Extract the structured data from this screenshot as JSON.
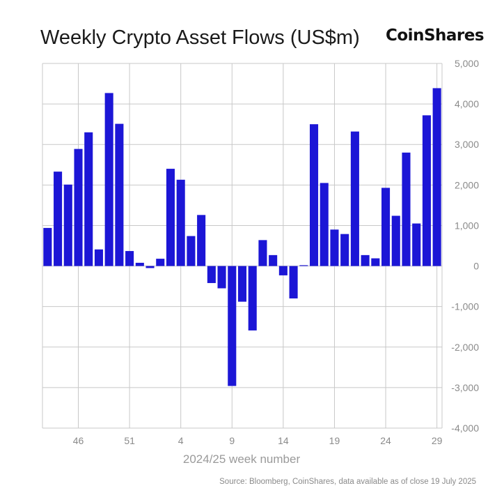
{
  "header": {
    "title": "Weekly Crypto Asset Flows (US$m)",
    "brand": "CoinShares"
  },
  "footer": {
    "source": "Source: Bloomberg, CoinShares, data available as of close 19 July 2025"
  },
  "colors": {
    "bar": "#1c16d6",
    "grid": "#c8c8c8",
    "axis_text": "#8a8a8a"
  },
  "chart_data": {
    "type": "bar",
    "title": "Weekly Crypto Asset Flows (US$m)",
    "xlabel": "2024/25 week number",
    "ylabel": "",
    "ylim": [
      -4000,
      5000
    ],
    "y_ticks": [
      -4000,
      -3000,
      -2000,
      -1000,
      0,
      1000,
      2000,
      3000,
      4000,
      5000
    ],
    "y_tick_labels": [
      "-4,000",
      "-3,000",
      "-2,000",
      "-1,000",
      "0",
      "1,000",
      "2,000",
      "3,000",
      "4,000",
      "5,000"
    ],
    "y_axis_side": "right",
    "x_tick_labels": [
      "46",
      "51",
      "4",
      "9",
      "14",
      "19",
      "24",
      "29"
    ],
    "grid": true,
    "categories": [
      "43",
      "44",
      "45",
      "46",
      "47",
      "48",
      "49",
      "50",
      "51",
      "52",
      "1",
      "2",
      "3",
      "4",
      "5",
      "6",
      "7",
      "8",
      "9",
      "10",
      "11",
      "12",
      "13",
      "14",
      "15",
      "16",
      "17",
      "18",
      "19",
      "20",
      "21",
      "22",
      "23",
      "24",
      "25",
      "26",
      "27",
      "28",
      "29"
    ],
    "values": [
      940,
      2330,
      2010,
      2890,
      3300,
      410,
      4270,
      3510,
      370,
      80,
      -50,
      180,
      2400,
      2130,
      740,
      1260,
      -420,
      -550,
      -2960,
      -880,
      -1590,
      640,
      270,
      -230,
      -800,
      20,
      3500,
      2050,
      900,
      790,
      3320,
      270,
      190,
      1930,
      1240,
      2800,
      1050,
      3720,
      4390
    ]
  }
}
